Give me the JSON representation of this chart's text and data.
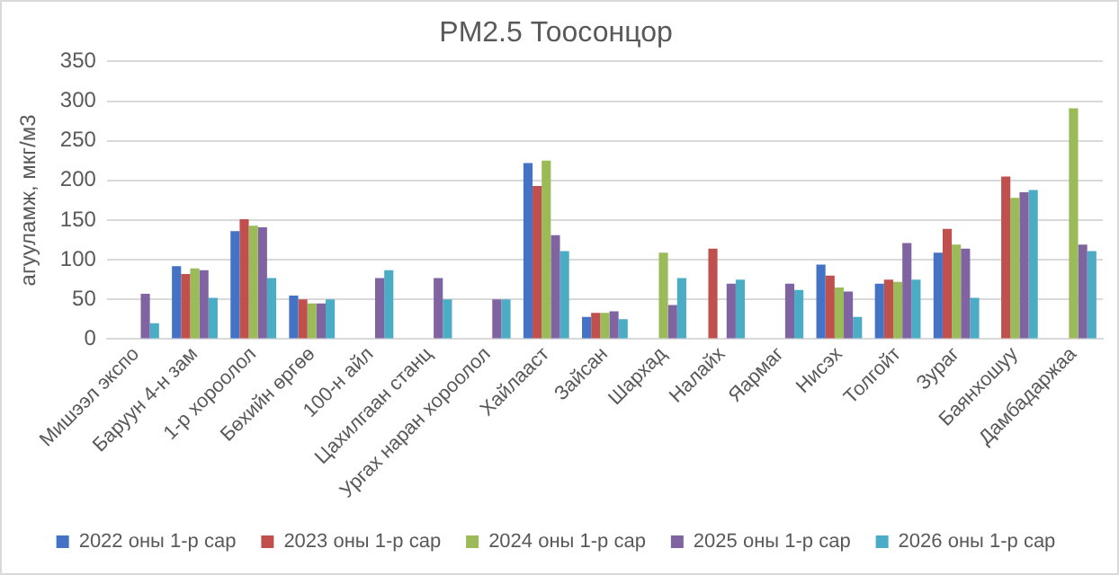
{
  "chart_data": {
    "type": "bar",
    "title": "PM2.5 Тоосонцор",
    "ylabel": "агууламж, мкг/м3",
    "categories": [
      "Мишээл экспо",
      "Баруун 4-н зам",
      "1-р хороолол",
      "Бөхийн өргөө",
      "100-н айл",
      "Цахилгаан станц",
      "Ургах наран хороолол",
      "Хайлааст",
      "Зайсан",
      "Шархад",
      "Налайх",
      "Яармаг",
      "Нисэх",
      "Толгойт",
      "Зураг",
      "Баянхошуу",
      "Дамбадаржаа"
    ],
    "series": [
      {
        "name": "2022 оны 1-р сар",
        "color": "#4472c4",
        "values": [
          null,
          92,
          136,
          55,
          null,
          null,
          null,
          222,
          28,
          null,
          null,
          null,
          94,
          70,
          109,
          null,
          null
        ]
      },
      {
        "name": "2023 оны 1-р сар",
        "color": "#c0504d",
        "values": [
          null,
          82,
          151,
          50,
          null,
          null,
          null,
          193,
          33,
          null,
          114,
          null,
          80,
          75,
          139,
          205,
          null
        ]
      },
      {
        "name": "2024 оны 1-р сар",
        "color": "#9bbb59",
        "values": [
          null,
          89,
          143,
          45,
          null,
          null,
          null,
          225,
          33,
          109,
          null,
          null,
          65,
          72,
          119,
          178,
          291
        ]
      },
      {
        "name": "2025 оны 1-р сар",
        "color": "#8064a2",
        "values": [
          57,
          87,
          141,
          45,
          77,
          77,
          50,
          131,
          35,
          43,
          70,
          70,
          60,
          121,
          114,
          185,
          119
        ]
      },
      {
        "name": "2026 оны 1-р сар",
        "color": "#4bacc6",
        "values": [
          20,
          52,
          77,
          50,
          87,
          50,
          50,
          111,
          25,
          77,
          75,
          62,
          28,
          75,
          52,
          188,
          111
        ]
      }
    ],
    "ylim": [
      0,
      350
    ],
    "yticks": [
      0,
      50,
      100,
      150,
      200,
      250,
      300,
      350
    ],
    "grid": "y",
    "legend": "bottom"
  }
}
